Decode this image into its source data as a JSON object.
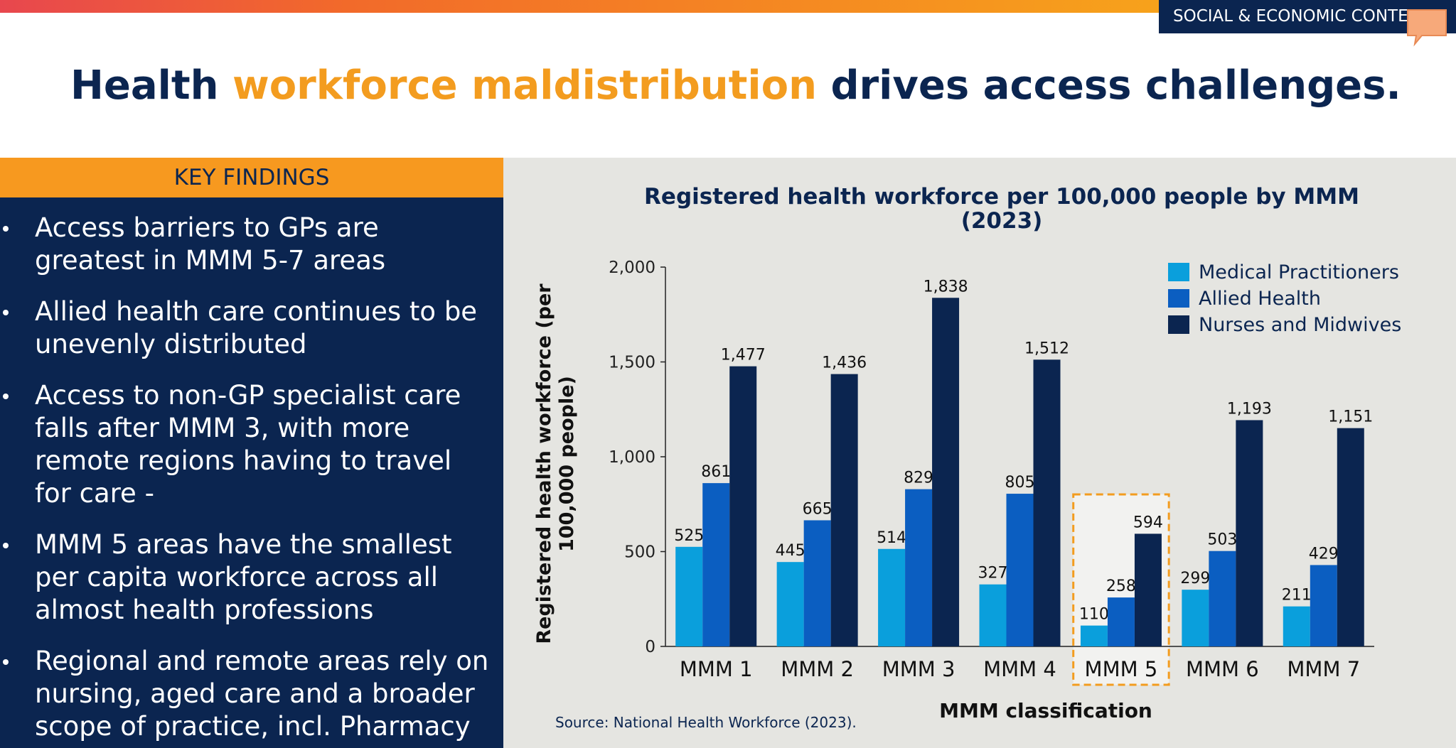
{
  "header": {
    "section_tag": "SOCIAL & ECONOMIC CONTEXT",
    "title_parts": [
      "Health ",
      "workforce maldistribution",
      " drives access challenges."
    ]
  },
  "key_findings": {
    "heading": "KEY FINDINGS",
    "bullets": [
      "Access barriers to GPs are greatest in MMM 5-7 areas",
      "Allied health care continues to be unevenly distributed",
      "Access to non-GP specialist care falls after MMM 3, with more remote regions having to travel for care -",
      "MMM 5 areas have the smallest per capita workforce across all almost health professions",
      "Regional and remote areas rely on nursing, aged care and a broader scope of practice, incl. Pharmacy"
    ]
  },
  "chart_data": {
    "type": "bar",
    "title": "Registered health workforce per 100,000 people by MMM (2023)",
    "x_label": "MMM classification",
    "y_label": "Registered health workforce (per 100,000 people)",
    "source": "Source: National Health Workforce (2023).",
    "categories": [
      "MMM 1",
      "MMM 2",
      "MMM 3",
      "MMM 4",
      "MMM 5",
      "MMM 6",
      "MMM 7"
    ],
    "series": [
      {
        "name": "Medical Practitioners",
        "color": "#0a9fdc",
        "values": [
          525,
          445,
          514,
          327,
          110,
          299,
          211
        ],
        "value_labels": [
          "525",
          "445",
          "514",
          "327",
          "110",
          "299",
          "211"
        ]
      },
      {
        "name": "Allied Health",
        "color": "#0b5ec1",
        "values": [
          861,
          665,
          829,
          805,
          258,
          503,
          429
        ],
        "value_labels": [
          "861",
          "665",
          "829",
          "805",
          "258",
          "503",
          "429"
        ]
      },
      {
        "name": "Nurses and Midwives",
        "color": "#0b2550",
        "values": [
          1477,
          1436,
          1838,
          1512,
          594,
          1193,
          1151
        ],
        "value_labels": [
          "1,477",
          "1,436",
          "1,838",
          "1,512",
          "594",
          "1,193",
          "1,151"
        ]
      }
    ],
    "ylim": [
      0,
      2000
    ],
    "yticks": [
      0,
      500,
      {
        "value": 1000,
        "label": "1,000"
      },
      {
        "value": 1500,
        "label": "1,500"
      },
      {
        "value": 2000,
        "label": "2,000"
      }
    ],
    "grid": false,
    "legend": "top-right",
    "highlight_category": "MMM 5"
  }
}
